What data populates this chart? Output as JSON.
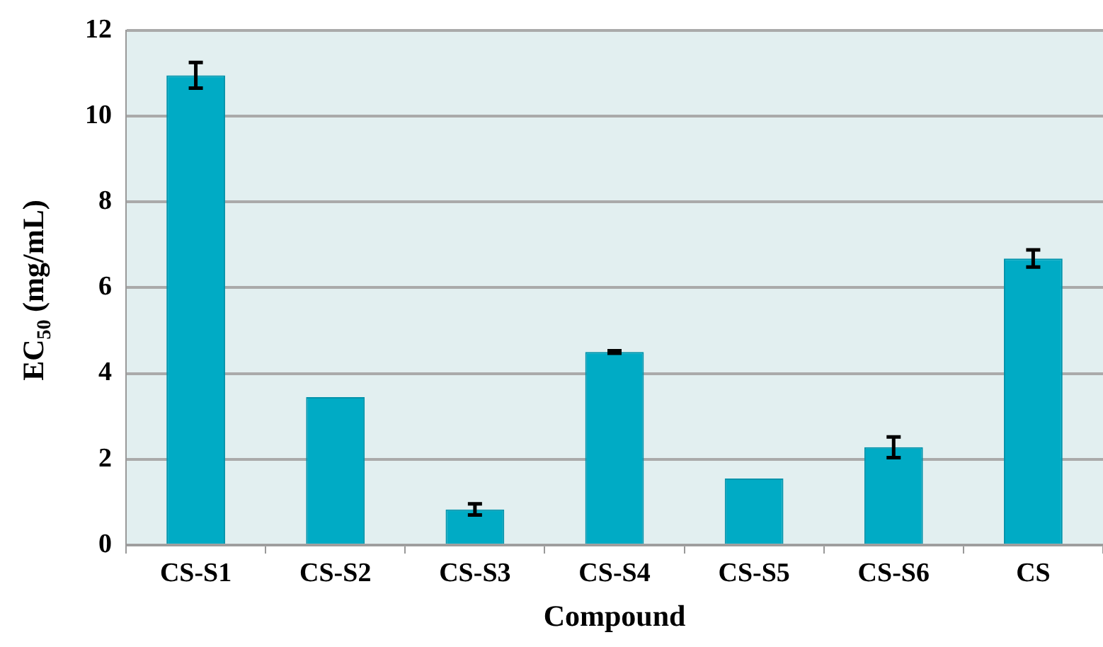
{
  "chart_data": {
    "type": "bar",
    "xlabel": "Compound",
    "ylabel": "EC$_{50}$ (mg/mL)",
    "categories": [
      "CS-S1",
      "CS-S2",
      "CS-S3",
      "CS-S4",
      "CS-S5",
      "CS-S6",
      "CS"
    ],
    "values": [
      10.95,
      3.45,
      0.83,
      4.5,
      1.55,
      2.28,
      6.68
    ],
    "errors": [
      0.3,
      null,
      0.13,
      0.03,
      null,
      0.24,
      0.2
    ],
    "color": "#00abc5",
    "ylim": [
      0,
      12
    ],
    "yticks": [
      0,
      2,
      4,
      6,
      8,
      10,
      12
    ],
    "grid": "y"
  }
}
